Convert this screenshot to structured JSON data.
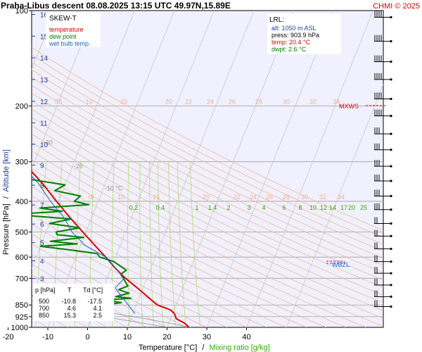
{
  "header": {
    "title": "Praha-Libus   descent   08.08.2025 13:15 UTC  49.97N,15.89E",
    "credit": "CHMI © 2025"
  },
  "legend": {
    "title": "SKEW-T",
    "items": [
      {
        "label": "temperature",
        "color": "#e00000"
      },
      {
        "label": "dew point",
        "color": "#008000"
      },
      {
        "label": "wet bulb temp.",
        "color": "#1e5fd0"
      }
    ]
  },
  "lrl": {
    "title": "LRL:",
    "alt": "alt: 1050 m ASL",
    "press": "press: 903.9 hPa",
    "temp": "temp: 20.4 °C",
    "dwpt": "dwpt: 2.6 °C"
  },
  "summary_table": {
    "headers": [
      "p [hPa]",
      "T",
      "Td [°C]"
    ],
    "rows": [
      [
        "500",
        "-10.8",
        "-17.5"
      ],
      [
        "700",
        "4.6",
        "4.1"
      ],
      [
        "850",
        "15.3",
        "2.5"
      ]
    ]
  },
  "level_labels": {
    "mxws": "MXWS",
    "wbzl": "WBZL"
  },
  "axis_titles": {
    "x_temperature": "Temperature [°C]",
    "x_separator": "/",
    "x_mixing": "Mixing ratio [g/kg]",
    "y_pressure": "Pressure [hPa]",
    "y_separator": "/",
    "y_altitude": "Altitude [km]"
  },
  "colors": {
    "plot_bg": "#f0f0ff",
    "temperature": "#e00000",
    "dewpoint": "#008000",
    "wetbulb": "#1e5fd0",
    "isotherm": "#c8c8c8",
    "dry_adiabat": "#f4b08a",
    "mixing_ratio": "#a8d860",
    "moist_adiabat": "#606060",
    "km_tick": "#1e3f9a"
  },
  "chart_data": {
    "type": "line",
    "x_axis": {
      "label": "Temperature [°C]",
      "range": [
        -35,
        45
      ],
      "ticks": [
        -30,
        -20,
        -10,
        0,
        10,
        20,
        30,
        40
      ]
    },
    "y_axis": {
      "label": "Pressure [hPa]",
      "range": [
        1000,
        100
      ],
      "scale": "log",
      "ticks": [
        100,
        200,
        300,
        400,
        500,
        600,
        700,
        850,
        925,
        1000
      ]
    },
    "altitude_ticks_km": [
      2,
      3,
      4,
      5,
      6,
      7,
      8,
      9,
      10,
      11,
      12,
      13,
      14,
      15,
      16
    ],
    "isotherm_labels": [
      {
        "t": -80,
        "label": "-80 °C"
      },
      {
        "t": -70,
        "label": "-70"
      },
      {
        "t": -60,
        "label": "-60"
      },
      {
        "t": -50,
        "label": "-50"
      },
      {
        "t": -40,
        "label": "-40"
      },
      {
        "t": -30,
        "label": "-30"
      },
      {
        "t": -20,
        "label": "-20"
      },
      {
        "t": -10,
        "label": "-10 °C"
      }
    ],
    "dry_adiabat_labels_200": [
      "0",
      "5",
      "10",
      "15",
      "20",
      "22",
      "24",
      "26",
      "28",
      "30",
      "32",
      "34"
    ],
    "dry_adiabat_labels_400": [
      "0",
      "5",
      "10",
      "15",
      "20",
      "22",
      "24",
      "26",
      "28",
      "30",
      "32",
      "34"
    ],
    "mixing_ratio_labels": [
      "0.2",
      "0.4",
      "1",
      "1.4",
      "2",
      "3",
      "4",
      "6",
      "8",
      "10",
      "12",
      "14",
      "17",
      "20",
      "25"
    ],
    "series": [
      {
        "name": "temperature",
        "points": [
          [
            1000,
            25.5
          ],
          [
            970,
            24
          ],
          [
            940,
            21.5
          ],
          [
            903.9,
            20.4
          ],
          [
            880,
            19
          ],
          [
            850,
            15.3
          ],
          [
            800,
            12
          ],
          [
            750,
            8.5
          ],
          [
            700,
            4.6
          ],
          [
            650,
            1
          ],
          [
            600,
            -2.5
          ],
          [
            550,
            -6.5
          ],
          [
            500,
            -10.8
          ],
          [
            450,
            -15.5
          ],
          [
            400,
            -20.5
          ],
          [
            350,
            -26
          ],
          [
            300,
            -33
          ],
          [
            250,
            -40.5
          ],
          [
            230,
            -44
          ],
          [
            215,
            -47
          ],
          [
            200,
            -50
          ],
          [
            190,
            -52
          ],
          [
            180,
            -53
          ],
          [
            170,
            -54
          ],
          [
            160,
            -54
          ],
          [
            150,
            -55
          ],
          [
            140,
            -55.5
          ],
          [
            130,
            -56
          ],
          [
            120,
            -56.5
          ],
          [
            110,
            -57
          ],
          [
            100,
            -56
          ]
        ]
      },
      {
        "name": "dew point",
        "points": [
          [
            903.9,
            2.6
          ],
          [
            880,
            2
          ],
          [
            860,
            3
          ],
          [
            850,
            2.5
          ],
          [
            835,
            6
          ],
          [
            820,
            1
          ],
          [
            810,
            8
          ],
          [
            800,
            4
          ],
          [
            780,
            7
          ],
          [
            760,
            4
          ],
          [
            740,
            6
          ],
          [
            720,
            5
          ],
          [
            700,
            4.1
          ],
          [
            680,
            3
          ],
          [
            660,
            4
          ],
          [
            640,
            2
          ],
          [
            620,
            0
          ],
          [
            600,
            -4
          ],
          [
            585,
            -5
          ],
          [
            570,
            -12
          ],
          [
            555,
            -20
          ],
          [
            545,
            -11
          ],
          [
            535,
            -18
          ],
          [
            520,
            -10
          ],
          [
            510,
            -17
          ],
          [
            500,
            -17.5
          ],
          [
            485,
            -12
          ],
          [
            470,
            -20
          ],
          [
            455,
            -15
          ],
          [
            440,
            -30
          ],
          [
            430,
            -18
          ],
          [
            420,
            -24
          ],
          [
            410,
            -12
          ],
          [
            400,
            -16
          ],
          [
            385,
            -15
          ],
          [
            370,
            -22
          ],
          [
            355,
            -20
          ],
          [
            340,
            -30
          ],
          [
            320,
            -30
          ],
          [
            300,
            -35
          ],
          [
            285,
            -40
          ],
          [
            270,
            -38
          ],
          [
            255,
            -43
          ],
          [
            240,
            -42
          ],
          [
            225,
            -46
          ],
          [
            210,
            -52
          ],
          [
            195,
            -55
          ],
          [
            182,
            -60
          ],
          [
            170,
            -68
          ],
          [
            160,
            -70
          ],
          [
            150,
            -72
          ],
          [
            140,
            -75
          ],
          [
            130,
            -78
          ],
          [
            120,
            -80
          ],
          [
            110,
            -80
          ],
          [
            100,
            -79
          ]
        ]
      },
      {
        "name": "wet bulb temp.",
        "points": [
          [
            903.9,
            10.5
          ],
          [
            850,
            8
          ],
          [
            800,
            5.5
          ],
          [
            750,
            3
          ],
          [
            700,
            4.3
          ],
          [
            650,
            1
          ],
          [
            600,
            -2.5
          ],
          [
            550,
            -9
          ],
          [
            500,
            -13.5
          ],
          [
            450,
            -17
          ],
          [
            400,
            -22
          ],
          [
            350,
            -27
          ],
          [
            300,
            -34
          ],
          [
            250,
            -42
          ],
          [
            200,
            -51
          ]
        ]
      }
    ],
    "wind_barbs_hpa": [
      105,
      125,
      145,
      165,
      190,
      215,
      245,
      275,
      310,
      345,
      385,
      425,
      470,
      515,
      565,
      620,
      675,
      735,
      800,
      860
    ]
  }
}
